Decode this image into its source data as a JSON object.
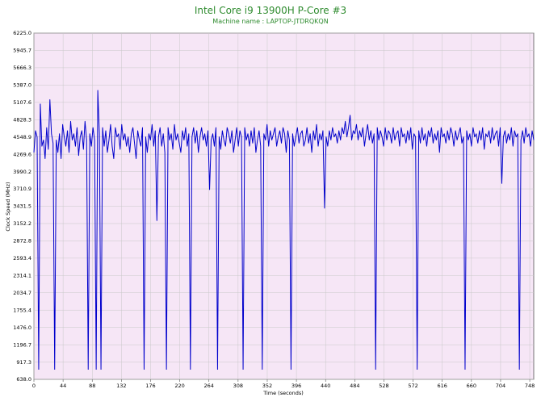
{
  "chart_data": {
    "type": "line",
    "title": "Intel Core i9 13900H P-Core #3",
    "subtitle": "Machine name : LAPTOP-JTDRQKQN",
    "xlabel": "Time (seconds)",
    "ylabel": "Clock Speed (MHz)",
    "xlim": [
      0,
      754
    ],
    "ylim": [
      638.0,
      6225.0
    ],
    "x_ticks": [
      0,
      44,
      88,
      132,
      176,
      220,
      264,
      308,
      352,
      396,
      440,
      484,
      528,
      572,
      616,
      660,
      704,
      748
    ],
    "y_ticks": [
      "6225.0",
      "5945.7",
      "5666.3",
      "5387.0",
      "5107.6",
      "4828.3",
      "4548.9",
      "4269.6",
      "3990.2",
      "3710.9",
      "3431.5",
      "3152.2",
      "2872.8",
      "2593.4",
      "2314.1",
      "2034.7",
      "1755.4",
      "1476.0",
      "1196.7",
      "917.3",
      "638.0"
    ],
    "grid": true,
    "background": "#f6e6f6",
    "line_color": "#0000cc",
    "series": [
      {
        "values": [
          4300,
          4650,
          4550,
          800,
          5080,
          4400,
          4500,
          4200,
          4700,
          4350,
          5150,
          4600,
          4450,
          800,
          4500,
          4300,
          4600,
          4200,
          4750,
          4550,
          4400,
          4650,
          4300,
          4800,
          4500,
          4600,
          4400,
          4700,
          4250,
          4550,
          4650,
          4350,
          4800,
          4500,
          800,
          4600,
          4400,
          4700,
          4500,
          800,
          5300,
          4600,
          800,
          4700,
          4400,
          4650,
          4300,
          4500,
          4750,
          4400,
          4200,
          4700,
          4550,
          4600,
          4350,
          4750,
          4500,
          4600,
          4400,
          4550,
          4300,
          4600,
          4700,
          4450,
          4200,
          4650,
          4500,
          4400,
          4700,
          800,
          4550,
          4300,
          4600,
          4500,
          4750,
          4400,
          4650,
          3200,
          4550,
          4700,
          4400,
          4600,
          4300,
          800,
          4700,
          4500,
          4600,
          4350,
          4750,
          4500,
          4600,
          4450,
          4300,
          4650,
          4500,
          4700,
          4400,
          4600,
          800,
          4550,
          4700,
          4450,
          4650,
          4300,
          4550,
          4700,
          4500,
          4600,
          4400,
          4650,
          3700,
          4500,
          4600,
          4400,
          4700,
          800,
          4550,
          4350,
          4650,
          4500,
          4400,
          4700,
          4600,
          4450,
          4650,
          4300,
          4500,
          4700,
          4400,
          4650,
          4550,
          800,
          4700,
          4500,
          4600,
          4400,
          4650,
          4450,
          4700,
          4300,
          4500,
          4650,
          4400,
          800,
          4600,
          4500,
          4750,
          4400,
          4650,
          4500,
          4600,
          4700,
          4400,
          4550,
          4650,
          4450,
          4700,
          4600,
          4300,
          4650,
          4500,
          800,
          4600,
          4400,
          4550,
          4700,
          4450,
          4600,
          4650,
          4400,
          4500,
          4700,
          4450,
          4600,
          4300,
          4650,
          4500,
          4750,
          4400,
          4600,
          4500,
          4650,
          3400,
          4550,
          4400,
          4650,
          4500,
          4700,
          4550,
          4600,
          4450,
          4650,
          4500,
          4700,
          4600,
          4800,
          4550,
          4700,
          4900,
          4500,
          4650,
          4600,
          4750,
          4500,
          4650,
          4550,
          4700,
          4400,
          4600,
          4750,
          4500,
          4650,
          4450,
          4600,
          800,
          4700,
          4500,
          4650,
          4550,
          4400,
          4700,
          4500,
          4650,
          4600,
          4450,
          4700,
          4500,
          4600,
          4650,
          4400,
          4700,
          4550,
          4600,
          4450,
          4650,
          4500,
          4700,
          4350,
          4600,
          4550,
          800,
          4650,
          4450,
          4700,
          4500,
          4600,
          4400,
          4650,
          4550,
          4700,
          4450,
          4600,
          4500,
          4650,
          4300,
          4700,
          4550,
          4600,
          4450,
          4650,
          4500,
          4700,
          4600,
          4400,
          4650,
          4500,
          4600,
          4700,
          4450,
          4550,
          800,
          4650,
          4500,
          4600,
          4400,
          4700,
          4550,
          4600,
          4450,
          4650,
          4500,
          4700,
          4350,
          4600,
          4550,
          4650,
          4450,
          4700,
          4500,
          4600,
          4650,
          4400,
          4700,
          3800,
          4550,
          4650,
          4450,
          4600,
          4500,
          4700,
          4400,
          4650,
          4550,
          4600,
          800,
          4500,
          4650,
          4450,
          4700,
          4550,
          4600,
          4400,
          4650,
          4500
        ]
      }
    ]
  }
}
